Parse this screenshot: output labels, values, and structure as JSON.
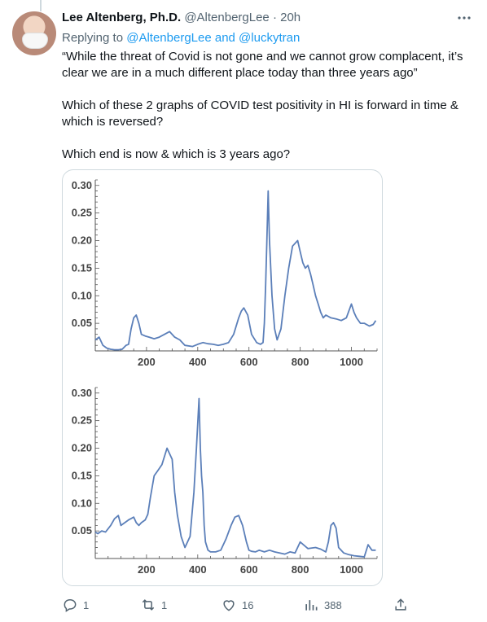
{
  "tweet": {
    "author_name": "Lee Altenberg, Ph.D.",
    "handle": "@AltenbergLee",
    "separator": "·",
    "time": "20h",
    "replying_prefix": "Replying to",
    "replying_to": "@AltenbergLee and @luckytran",
    "paragraphs": [
      "“While the threat of Covid is not gone and we cannot grow complacent, it’s clear we are in a much different place today than three years ago”",
      "Which of these 2 graphs of COVID test positivity in HI is forward in time & which is reversed?",
      "Which end is now & which is 3 years ago?"
    ],
    "more_icon": "more-horizontal-icon"
  },
  "actions": {
    "reply_count": "1",
    "retweet_count": "1",
    "like_count": "16",
    "views_count": "388",
    "icons": [
      "reply-icon",
      "retweet-icon",
      "like-icon",
      "views-icon",
      "share-icon"
    ]
  },
  "colors": {
    "line": "#5b7fb9",
    "link": "#1d9bf0",
    "muted": "#536471"
  },
  "chart_data": [
    {
      "type": "line",
      "xlim": [
        0,
        1100
      ],
      "ylim": [
        0,
        0.31
      ],
      "xticks": [
        200,
        400,
        600,
        800,
        1000
      ],
      "yticks": [
        0.05,
        0.1,
        0.15,
        0.2,
        0.25,
        0.3
      ],
      "xtick_labels": [
        "200",
        "400",
        "600",
        "800",
        "1000"
      ],
      "ytick_labels": [
        "0.05",
        "0.10",
        "0.15",
        "0.20",
        "0.25",
        "0.30"
      ],
      "x": [
        0,
        15,
        30,
        45,
        60,
        75,
        90,
        105,
        120,
        130,
        140,
        150,
        160,
        170,
        180,
        195,
        210,
        230,
        250,
        270,
        290,
        300,
        310,
        330,
        350,
        380,
        400,
        420,
        440,
        460,
        480,
        500,
        520,
        540,
        560,
        570,
        580,
        595,
        610,
        630,
        645,
        655,
        660,
        665,
        670,
        675,
        680,
        690,
        700,
        710,
        725,
        740,
        755,
        770,
        790,
        800,
        810,
        820,
        830,
        840,
        850,
        860,
        870,
        880,
        890,
        900,
        920,
        940,
        960,
        980,
        1000,
        1010,
        1020,
        1035,
        1050,
        1070,
        1085,
        1095
      ],
      "y": [
        0.02,
        0.025,
        0.01,
        0.005,
        0.003,
        0.002,
        0.002,
        0.003,
        0.01,
        0.012,
        0.04,
        0.06,
        0.065,
        0.05,
        0.03,
        0.027,
        0.025,
        0.022,
        0.025,
        0.03,
        0.035,
        0.03,
        0.025,
        0.02,
        0.01,
        0.008,
        0.012,
        0.015,
        0.013,
        0.012,
        0.01,
        0.012,
        0.015,
        0.03,
        0.06,
        0.072,
        0.078,
        0.065,
        0.03,
        0.015,
        0.012,
        0.015,
        0.05,
        0.12,
        0.2,
        0.29,
        0.2,
        0.1,
        0.04,
        0.02,
        0.04,
        0.1,
        0.15,
        0.19,
        0.2,
        0.18,
        0.16,
        0.15,
        0.155,
        0.14,
        0.12,
        0.1,
        0.085,
        0.07,
        0.06,
        0.065,
        0.06,
        0.058,
        0.055,
        0.06,
        0.085,
        0.07,
        0.06,
        0.05,
        0.05,
        0.045,
        0.048,
        0.055
      ]
    },
    {
      "type": "line",
      "xlim": [
        0,
        1100
      ],
      "ylim": [
        0,
        0.31
      ],
      "xticks": [
        200,
        400,
        600,
        800,
        1000
      ],
      "yticks": [
        0.05,
        0.1,
        0.15,
        0.2,
        0.25,
        0.3
      ],
      "xtick_labels": [
        "200",
        "400",
        "600",
        "800",
        "1000"
      ],
      "ytick_labels": [
        "0.05",
        "0.10",
        "0.15",
        "0.20",
        "0.25",
        "0.30"
      ],
      "x": [
        0,
        10,
        25,
        40,
        60,
        75,
        90,
        100,
        115,
        130,
        150,
        160,
        170,
        180,
        195,
        205,
        215,
        230,
        245,
        260,
        280,
        290,
        300,
        310,
        320,
        335,
        350,
        370,
        385,
        395,
        405,
        410,
        415,
        420,
        425,
        430,
        440,
        450,
        460,
        470,
        490,
        510,
        530,
        545,
        560,
        575,
        590,
        600,
        610,
        625,
        640,
        660,
        680,
        700,
        720,
        740,
        760,
        780,
        800,
        830,
        860,
        880,
        900,
        910,
        920,
        930,
        940,
        950,
        970,
        990,
        1010,
        1030,
        1050,
        1065,
        1080,
        1095
      ],
      "y": [
        0.048,
        0.045,
        0.05,
        0.048,
        0.06,
        0.072,
        0.078,
        0.06,
        0.065,
        0.07,
        0.075,
        0.065,
        0.06,
        0.065,
        0.07,
        0.08,
        0.11,
        0.15,
        0.16,
        0.17,
        0.2,
        0.19,
        0.18,
        0.12,
        0.08,
        0.04,
        0.02,
        0.04,
        0.12,
        0.2,
        0.29,
        0.2,
        0.15,
        0.12,
        0.06,
        0.03,
        0.015,
        0.012,
        0.012,
        0.012,
        0.015,
        0.035,
        0.06,
        0.075,
        0.078,
        0.06,
        0.03,
        0.015,
        0.013,
        0.012,
        0.015,
        0.012,
        0.015,
        0.012,
        0.01,
        0.008,
        0.012,
        0.01,
        0.03,
        0.018,
        0.02,
        0.017,
        0.012,
        0.03,
        0.06,
        0.065,
        0.055,
        0.02,
        0.01,
        0.007,
        0.005,
        0.004,
        0.003,
        0.025,
        0.015,
        0.015
      ]
    }
  ]
}
